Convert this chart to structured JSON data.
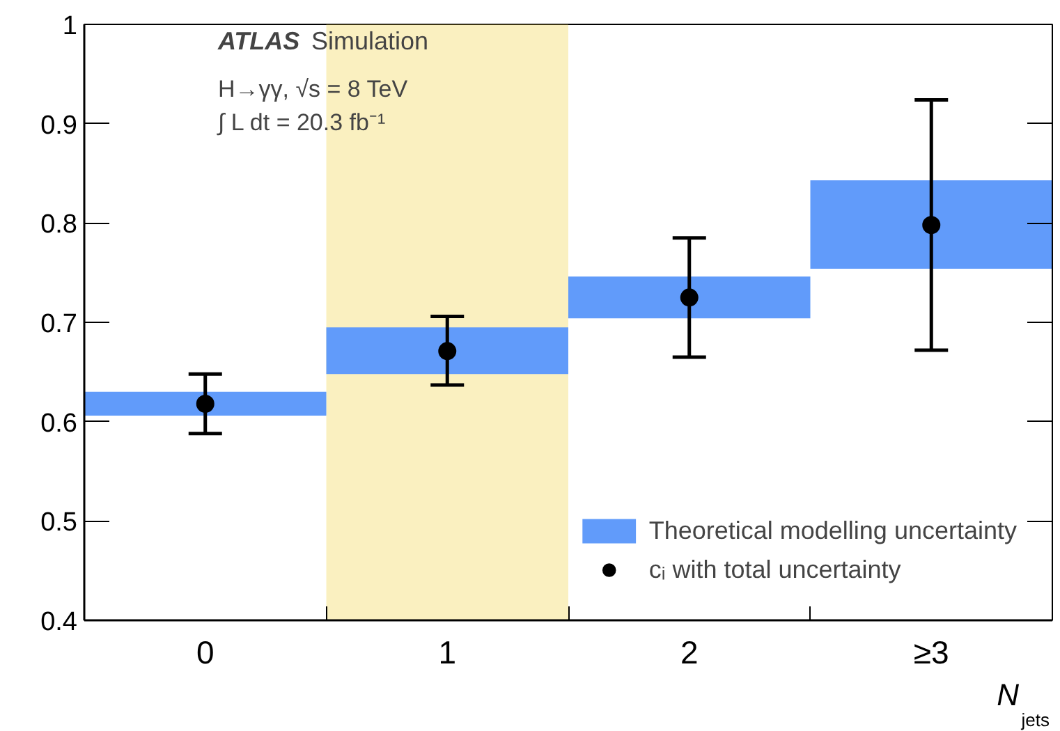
{
  "chart_data": {
    "type": "scatter",
    "x": [
      0,
      1,
      2,
      3
    ],
    "xlabel": "N$_{jets}$",
    "xlim": [
      -0.5,
      3.5
    ],
    "xticks": [
      {
        "value": 0,
        "label": "0"
      },
      {
        "value": 1,
        "label": "1"
      },
      {
        "value": 2,
        "label": "2"
      },
      {
        "value": 3,
        "label": "≥3"
      },
      {
        "value": 0.5,
        "label": null
      },
      {
        "value": 1.5,
        "label": null
      },
      {
        "value": 2.5,
        "label": null
      }
    ],
    "ylim": [
      0.4,
      1.0
    ],
    "yticks": [
      0.4,
      0.5,
      0.6,
      0.7,
      0.8,
      0.9,
      1
    ],
    "series": [
      {
        "type": "bar",
        "name": "Theoretical modelling uncertainty",
        "color": "#619bfa",
        "base": [
          0.606,
          0.648,
          0.704,
          0.754
        ],
        "values": [
          0.024,
          0.047,
          0.042,
          0.089
        ]
      },
      {
        "name": "cᵢ with total uncertainty",
        "color": "#000000",
        "values": [
          0.618,
          0.671,
          0.725,
          0.798
        ],
        "errors": [
          [
            0.588,
            0.648
          ],
          [
            0.637,
            0.706
          ],
          [
            0.665,
            0.785
          ],
          [
            0.672,
            0.924
          ]
        ]
      }
    ],
    "marker": "circle",
    "bands": [
      {
        "axis": "x",
        "from": 0.5,
        "to": 1.5,
        "color": "#f2d54b"
      }
    ],
    "annotations": [
      "ATLAS Simulation",
      "H→γγ, √s = 8 TeV",
      "∫ L dt = 20.3 fb⁻¹"
    ],
    "legend": "bottom right",
    "grid": false
  }
}
